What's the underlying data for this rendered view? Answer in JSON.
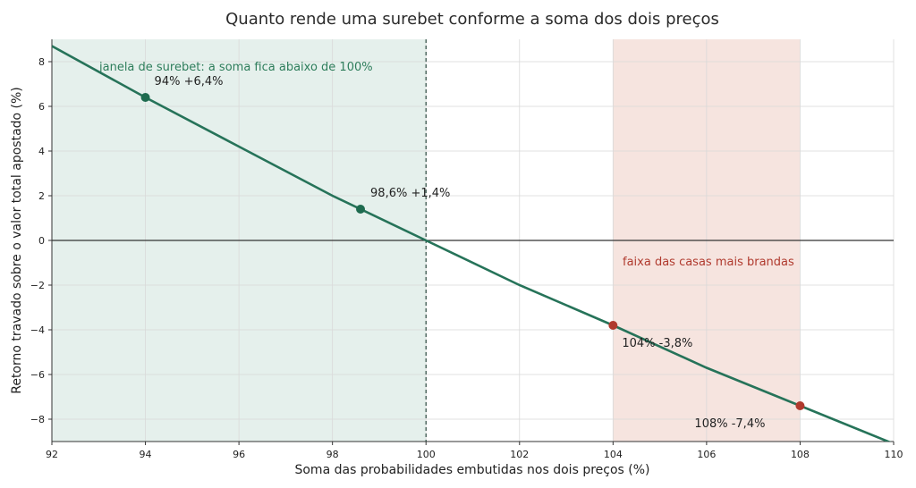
{
  "chart_data": {
    "type": "line",
    "title": "Quanto rende uma surebet conforme a soma dos dois preços",
    "xlabel": "Soma das probabilidades embutidas nos dois preços (%)",
    "ylabel": "Retorno travado sobre o valor total apostado (%)",
    "xlim": [
      92,
      110
    ],
    "ylim": [
      -9,
      9
    ],
    "x_ticks": [
      92,
      94,
      96,
      98,
      100,
      102,
      104,
      106,
      108,
      110
    ],
    "y_ticks": [
      -8,
      -6,
      -4,
      -2,
      0,
      2,
      4,
      6,
      8
    ],
    "x_tick_labels": [
      "92",
      "94",
      "96",
      "98",
      "100",
      "102",
      "104",
      "106",
      "108",
      "110"
    ],
    "y_tick_labels": [
      "−8",
      "−6",
      "−4",
      "−2",
      "0",
      "2",
      "4",
      "6",
      "8"
    ],
    "grid": true,
    "series": [
      {
        "x": [
          92,
          94,
          96,
          98,
          100,
          102,
          104,
          106,
          108,
          110
        ],
        "y": [
          8.7,
          6.4,
          4.2,
          2.0,
          0.0,
          -2.0,
          -3.8,
          -5.7,
          -7.4,
          -9.1
        ],
        "color": "#267359"
      }
    ],
    "highlighted_points": [
      {
        "x": 94,
        "y": 6.4,
        "label": "94%  +6,4%",
        "color": "#1e6b4f"
      },
      {
        "x": 98.6,
        "y": 1.4,
        "label": "98,6%  +1,4%",
        "color": "#1e6b4f"
      },
      {
        "x": 104,
        "y": -3.8,
        "label": "104%  -3,8%",
        "color": "#b03a2e"
      },
      {
        "x": 108,
        "y": -7.4,
        "label": "108%  -7,4%",
        "color": "#b03a2e"
      }
    ],
    "bands": [
      {
        "x_start": 92,
        "x_end": 100,
        "color": "#e5f0ec",
        "label": "janela de surebet: a soma fica abaixo de 100%",
        "label_color": "#2e7d5b"
      },
      {
        "x_start": 104,
        "x_end": 108,
        "color": "#f6e4df",
        "label": "faixa das casas mais brandas",
        "label_color": "#b03a2e"
      }
    ],
    "reference_lines": [
      {
        "orientation": "vertical",
        "value": 100,
        "style": "dashed",
        "color": "#2b4a40"
      },
      {
        "orientation": "horizontal",
        "value": 0,
        "style": "solid",
        "color": "#333333"
      }
    ]
  }
}
